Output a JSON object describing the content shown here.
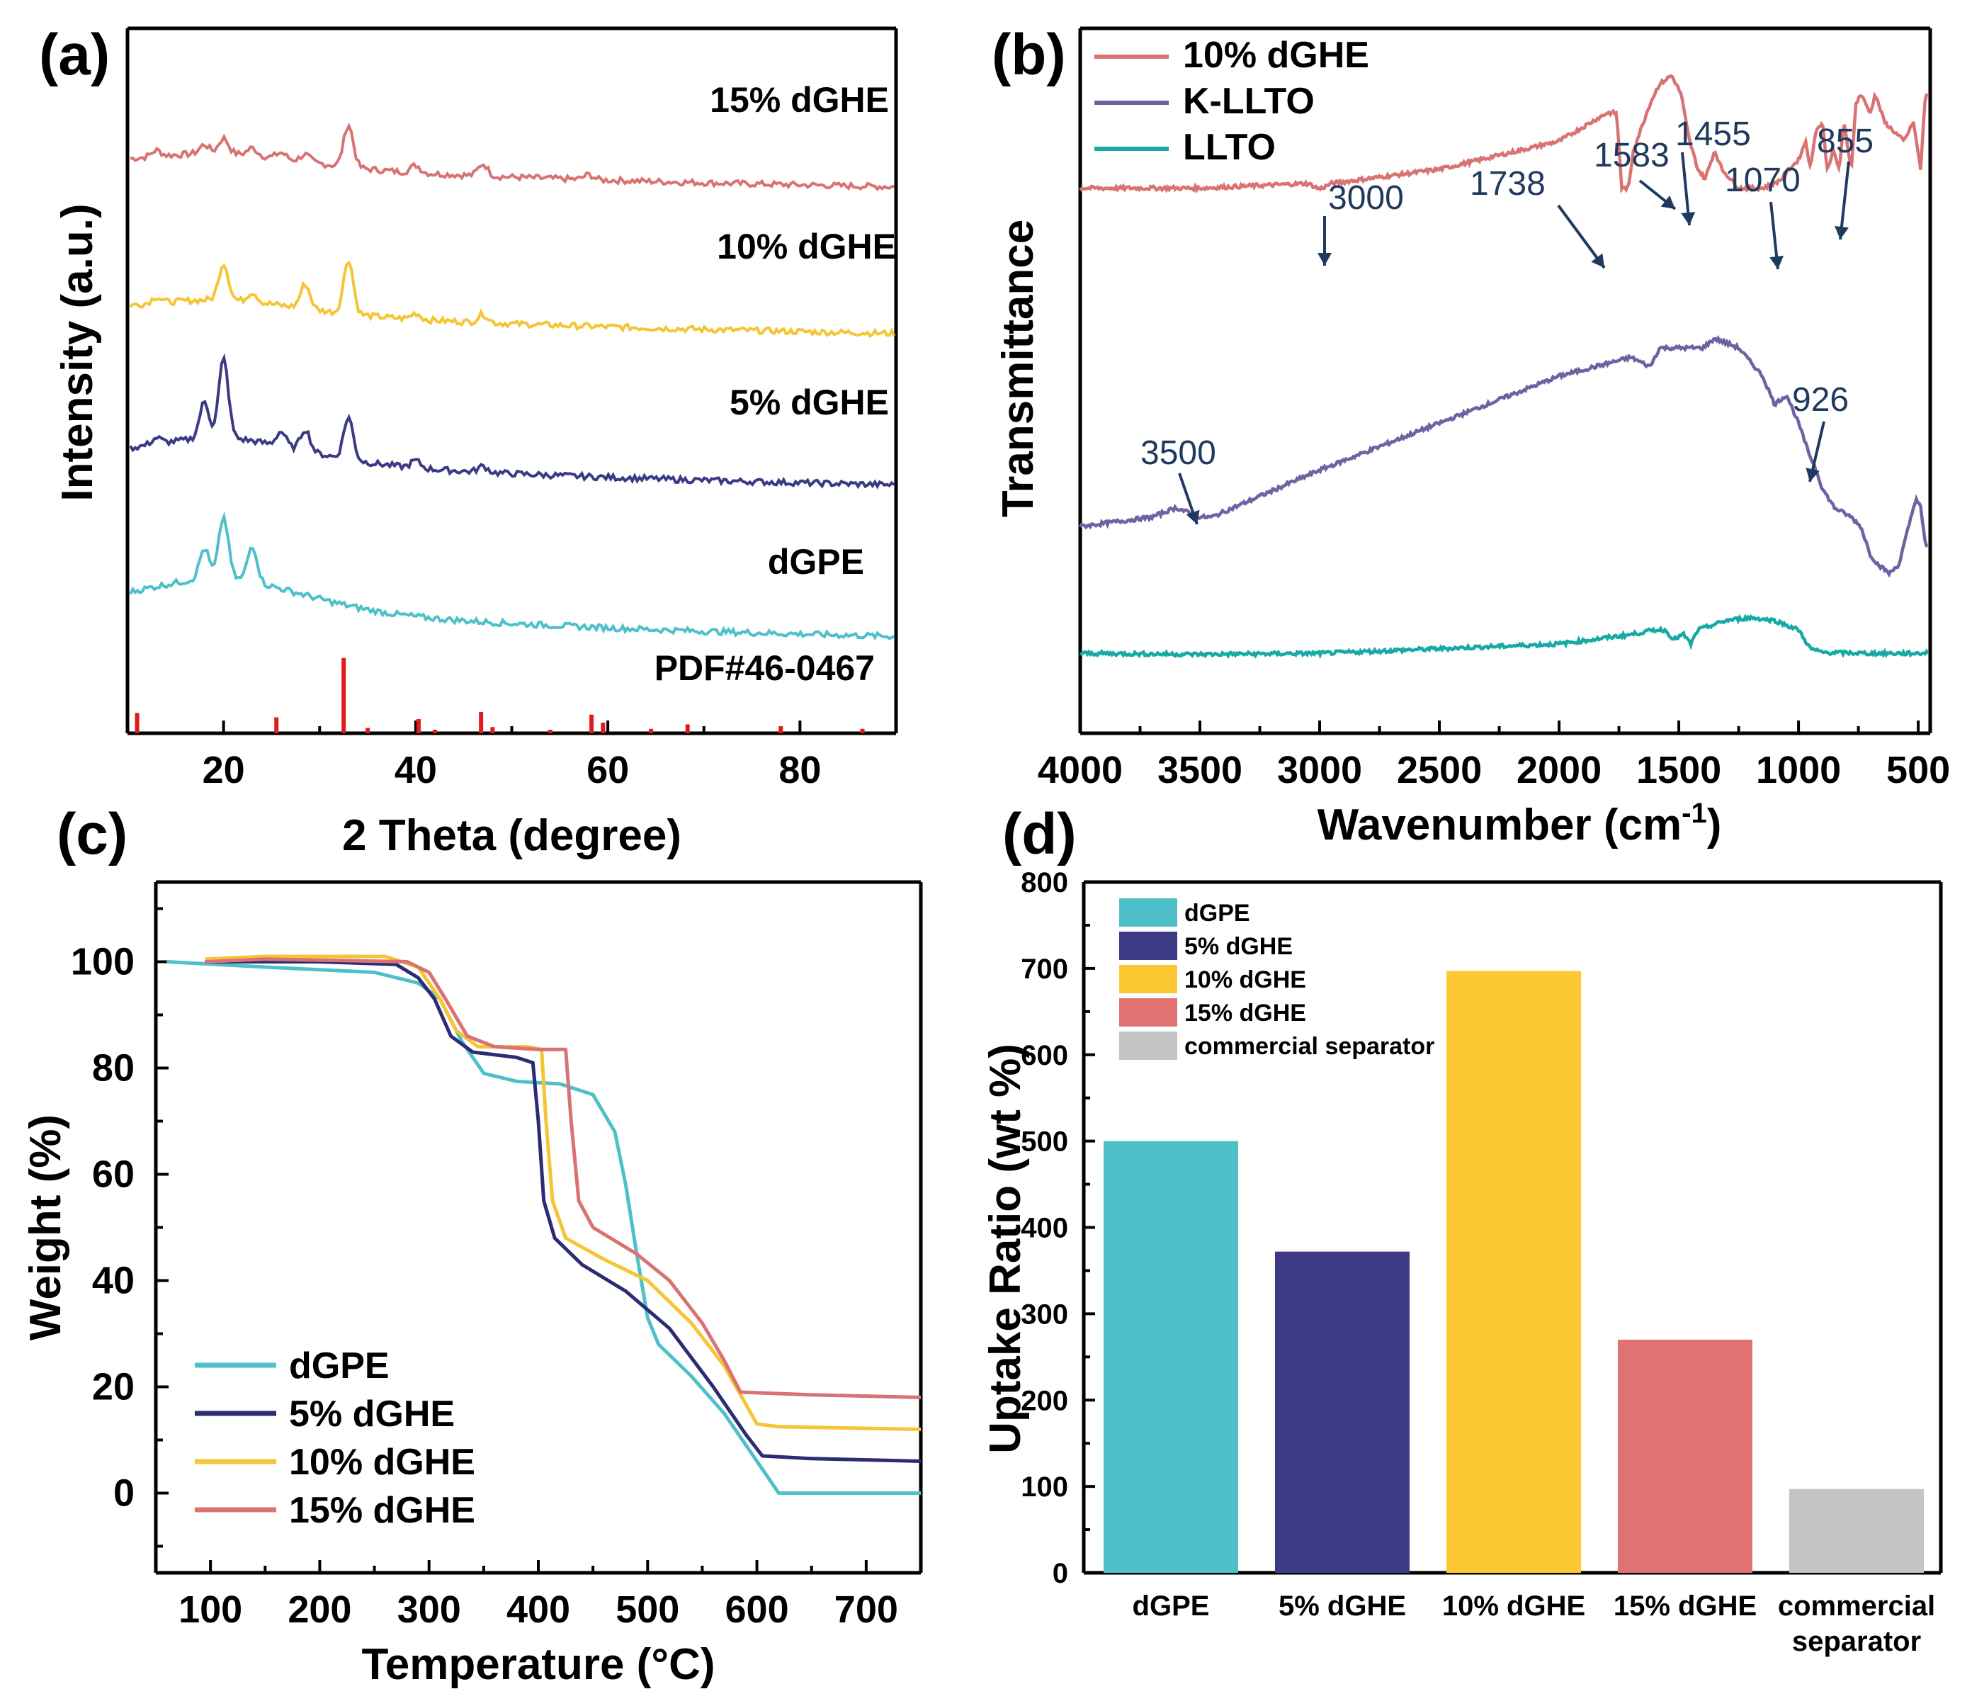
{
  "chart_data": [
    {
      "panel": "(a)",
      "type": "line",
      "xlabel": "2 Theta (degree)",
      "ylabel": "Intensity (a.u.)",
      "xlim": [
        10,
        90
      ],
      "xticks": [
        20,
        40,
        60,
        80
      ],
      "series": [
        {
          "name": "15% dGHE",
          "color": "#d97373",
          "offset": 3,
          "peaks": [
            [
              13,
              0.05
            ],
            [
              18,
              0.07
            ],
            [
              20,
              0.12
            ],
            [
              23,
              0.06
            ],
            [
              26,
              0.05
            ],
            [
              28.5,
              0.06
            ],
            [
              33,
              0.35
            ],
            [
              40,
              0.06
            ],
            [
              47,
              0.1
            ],
            [
              58,
              0.04
            ]
          ],
          "baseline": 0.15,
          "decay": 0.08
        },
        {
          "name": "10% dGHE",
          "color": "#f5c535",
          "offset": 2,
          "peaks": [
            [
              13,
              0.05
            ],
            [
              20,
              0.3
            ],
            [
              23,
              0.08
            ],
            [
              28.5,
              0.2
            ],
            [
              33,
              0.45
            ],
            [
              40,
              0.05
            ],
            [
              47,
              0.07
            ]
          ],
          "baseline": 0.15,
          "decay": 0.08
        },
        {
          "name": "5% dGHE",
          "color": "#3b3b85",
          "offset": 1,
          "peaks": [
            [
              13,
              0.05
            ],
            [
              18,
              0.3
            ],
            [
              20,
              0.65
            ],
            [
              26,
              0.12
            ],
            [
              28.5,
              0.18
            ],
            [
              33,
              0.35
            ],
            [
              40,
              0.06
            ],
            [
              47,
              0.05
            ]
          ],
          "baseline": 0.2,
          "decay": 0.15
        },
        {
          "name": "dGPE",
          "color": "#4fc0c9",
          "offset": 0,
          "peaks": [
            [
              18,
              0.25
            ],
            [
              20,
              0.5
            ],
            [
              23,
              0.3
            ]
          ],
          "baseline": 0.25,
          "decay": 0.2
        }
      ],
      "reference": {
        "name": "PDF#46-0467",
        "color": "#e01b1b",
        "sticks": [
          [
            11,
            0.23
          ],
          [
            25.5,
            0.18
          ],
          [
            32.5,
            0.85
          ],
          [
            35,
            0.06
          ],
          [
            40.3,
            0.16
          ],
          [
            42,
            0.04
          ],
          [
            46.8,
            0.24
          ],
          [
            48,
            0.07
          ],
          [
            54,
            0.04
          ],
          [
            58.3,
            0.21
          ],
          [
            59.5,
            0.12
          ],
          [
            64.5,
            0.05
          ],
          [
            68.3,
            0.1
          ],
          [
            78,
            0.08
          ],
          [
            86.5,
            0.05
          ]
        ]
      }
    },
    {
      "panel": "(b)",
      "type": "line",
      "xlabel": "Wavenumber (cm",
      "xlabel_sup": "-1",
      "xlabel_end": ")",
      "ylabel": "Transmittance",
      "xlim": [
        4000,
        450
      ],
      "xticks": [
        4000,
        3500,
        3000,
        2500,
        2000,
        1500,
        1000,
        500
      ],
      "series": [
        {
          "name": "10% dGHE",
          "color": "#d97373",
          "points": [
            [
              4000,
              0.78
            ],
            [
              3500,
              0.78
            ],
            [
              3050,
              0.785
            ],
            [
              3000,
              0.779
            ],
            [
              2950,
              0.785
            ],
            [
              2500,
              0.8
            ],
            [
              2000,
              0.83
            ],
            [
              1800,
              0.86
            ],
            [
              1760,
              0.86
            ],
            [
              1738,
              0.78
            ],
            [
              1710,
              0.78
            ],
            [
              1690,
              0.82
            ],
            [
              1620,
              0.87
            ],
            [
              1583,
              0.89
            ],
            [
              1530,
              0.9
            ],
            [
              1490,
              0.88
            ],
            [
              1470,
              0.85
            ],
            [
              1455,
              0.83
            ],
            [
              1420,
              0.8
            ],
            [
              1390,
              0.79
            ],
            [
              1350,
              0.82
            ],
            [
              1320,
              0.8
            ],
            [
              1250,
              0.78
            ],
            [
              1150,
              0.78
            ],
            [
              1100,
              0.785
            ],
            [
              1070,
              0.79
            ],
            [
              1040,
              0.8
            ],
            [
              1000,
              0.81
            ],
            [
              970,
              0.83
            ],
            [
              950,
              0.8
            ],
            [
              930,
              0.84
            ],
            [
              900,
              0.85
            ],
            [
              880,
              0.8
            ],
            [
              855,
              0.82
            ],
            [
              830,
              0.8
            ],
            [
              810,
              0.85
            ],
            [
              780,
              0.8
            ],
            [
              760,
              0.87
            ],
            [
              740,
              0.88
            ],
            [
              700,
              0.86
            ],
            [
              680,
              0.88
            ],
            [
              640,
              0.85
            ],
            [
              600,
              0.84
            ],
            [
              560,
              0.83
            ],
            [
              520,
              0.85
            ],
            [
              490,
              0.8
            ],
            [
              470,
              0.88
            ]
          ]
        },
        {
          "name": "K-LLTO",
          "color": "#6b63a3",
          "points": [
            [
              4000,
              0.42
            ],
            [
              3700,
              0.43
            ],
            [
              3600,
              0.44
            ],
            [
              3500,
              0.43
            ],
            [
              3450,
              0.43
            ],
            [
              3000,
              0.48
            ],
            [
              2500,
              0.53
            ],
            [
              2000,
              0.58
            ],
            [
              1700,
              0.6
            ],
            [
              1620,
              0.59
            ],
            [
              1580,
              0.61
            ],
            [
              1500,
              0.61
            ],
            [
              1400,
              0.61
            ],
            [
              1350,
              0.62
            ],
            [
              1250,
              0.61
            ],
            [
              1150,
              0.58
            ],
            [
              1100,
              0.55
            ],
            [
              1050,
              0.56
            ],
            [
              1000,
              0.53
            ],
            [
              960,
              0.5
            ],
            [
              926,
              0.48
            ],
            [
              900,
              0.46
            ],
            [
              850,
              0.44
            ],
            [
              780,
              0.43
            ],
            [
              740,
              0.42
            ],
            [
              700,
              0.39
            ],
            [
              670,
              0.38
            ],
            [
              620,
              0.37
            ],
            [
              580,
              0.38
            ],
            [
              540,
              0.42
            ],
            [
              510,
              0.45
            ],
            [
              490,
              0.44
            ],
            [
              470,
              0.4
            ]
          ]
        },
        {
          "name": "LLTO",
          "color": "#17a9a6",
          "points": [
            [
              4000,
              0.285
            ],
            [
              3500,
              0.284
            ],
            [
              3000,
              0.285
            ],
            [
              2500,
              0.29
            ],
            [
              2000,
              0.295
            ],
            [
              1700,
              0.305
            ],
            [
              1600,
              0.31
            ],
            [
              1560,
              0.31
            ],
            [
              1520,
              0.3
            ],
            [
              1480,
              0.305
            ],
            [
              1450,
              0.295
            ],
            [
              1420,
              0.31
            ],
            [
              1300,
              0.32
            ],
            [
              1200,
              0.323
            ],
            [
              1100,
              0.32
            ],
            [
              1000,
              0.31
            ],
            [
              950,
              0.29
            ],
            [
              900,
              0.286
            ],
            [
              700,
              0.285
            ],
            [
              500,
              0.285
            ],
            [
              450,
              0.286
            ]
          ]
        }
      ],
      "annotations": [
        "3000",
        "1738",
        "1583",
        "1455",
        "1070",
        "855",
        "3500",
        "926"
      ]
    },
    {
      "panel": "(c)",
      "type": "line",
      "xlabel": "Temperature (°C)",
      "ylabel": "Weight (%)",
      "xlim": [
        50,
        750
      ],
      "ylim": [
        -15,
        115
      ],
      "xticks": [
        100,
        200,
        300,
        400,
        500,
        600,
        700
      ],
      "yticks": [
        0,
        20,
        40,
        60,
        80,
        100
      ],
      "series": [
        {
          "name": "dGPE",
          "color": "#4fc0c9",
          "points": [
            [
              60,
              100
            ],
            [
              150,
              99
            ],
            [
              250,
              98
            ],
            [
              290,
              96
            ],
            [
              310,
              93
            ],
            [
              330,
              85
            ],
            [
              350,
              79
            ],
            [
              380,
              77.5
            ],
            [
              420,
              77
            ],
            [
              450,
              75
            ],
            [
              470,
              68
            ],
            [
              480,
              58
            ],
            [
              490,
              45
            ],
            [
              500,
              33
            ],
            [
              510,
              28
            ],
            [
              540,
              22
            ],
            [
              570,
              15
            ],
            [
              600,
              6
            ],
            [
              620,
              0
            ],
            [
              750,
              0
            ]
          ]
        },
        {
          "name": "5% dGHE",
          "color": "#2c2c75",
          "points": [
            [
              95,
              100
            ],
            [
              200,
              100
            ],
            [
              270,
              99.5
            ],
            [
              290,
              97
            ],
            [
              305,
              93
            ],
            [
              320,
              86
            ],
            [
              340,
              83
            ],
            [
              380,
              82
            ],
            [
              395,
              81
            ],
            [
              400,
              70
            ],
            [
              405,
              55
            ],
            [
              415,
              48
            ],
            [
              440,
              43
            ],
            [
              480,
              38
            ],
            [
              520,
              31
            ],
            [
              560,
              20
            ],
            [
              590,
              11
            ],
            [
              605,
              7
            ],
            [
              650,
              6.5
            ],
            [
              750,
              6
            ]
          ]
        },
        {
          "name": "10% dGHE",
          "color": "#f5c535",
          "points": [
            [
              95,
              100.5
            ],
            [
              150,
              101
            ],
            [
              260,
              101
            ],
            [
              290,
              99
            ],
            [
              310,
              93
            ],
            [
              325,
              87
            ],
            [
              345,
              84
            ],
            [
              390,
              84
            ],
            [
              403,
              83.5
            ],
            [
              407,
              70
            ],
            [
              413,
              55
            ],
            [
              425,
              48
            ],
            [
              460,
              44
            ],
            [
              500,
              40
            ],
            [
              540,
              32
            ],
            [
              570,
              24
            ],
            [
              600,
              13
            ],
            [
              620,
              12.5
            ],
            [
              750,
              12
            ]
          ]
        },
        {
          "name": "15% dGHE",
          "color": "#d97373",
          "points": [
            [
              95,
              100
            ],
            [
              150,
              100.5
            ],
            [
              280,
              100
            ],
            [
              300,
              98
            ],
            [
              315,
              93
            ],
            [
              335,
              86
            ],
            [
              360,
              84
            ],
            [
              400,
              83.5
            ],
            [
              425,
              83.5
            ],
            [
              430,
              70
            ],
            [
              437,
              55
            ],
            [
              450,
              50
            ],
            [
              490,
              45
            ],
            [
              520,
              40
            ],
            [
              550,
              32
            ],
            [
              570,
              25
            ],
            [
              585,
              19
            ],
            [
              650,
              18.5
            ],
            [
              750,
              18
            ]
          ]
        }
      ]
    },
    {
      "panel": "(d)",
      "type": "bar",
      "ylabel": "Uptake Ratio (wt %)",
      "ylim": [
        0,
        800
      ],
      "yticks": [
        0,
        100,
        200,
        300,
        400,
        500,
        600,
        700,
        800
      ],
      "categories": [
        "dGPE",
        "5% dGHE",
        "10% dGHE",
        "15% dGHE",
        "commercial separator"
      ],
      "category_lines": [
        [
          "dGPE"
        ],
        [
          "5% dGHE"
        ],
        [
          "10% dGHE"
        ],
        [
          "15% dGHE"
        ],
        [
          "commercial",
          "separator"
        ]
      ],
      "values": [
        500,
        372,
        697,
        270,
        97
      ],
      "colors": [
        "#4fc0c9",
        "#3d3a85",
        "#fcc934",
        "#e07272",
        "#c4c4c4"
      ]
    }
  ],
  "panel_labels": [
    "(a)",
    "(b)",
    "(c)",
    "(d)"
  ]
}
